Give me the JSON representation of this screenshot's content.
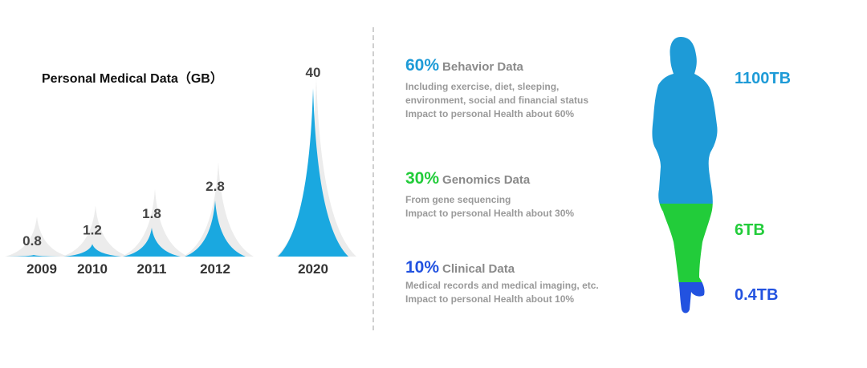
{
  "chart_data": {
    "type": "bar",
    "title": "Personal Medical Data（GB）",
    "categories": [
      "2009",
      "2010",
      "2011",
      "2012",
      "2020"
    ],
    "values": [
      0.8,
      1.2,
      1.8,
      2.8,
      40
    ],
    "value_labels": [
      "0.8",
      "1.2",
      "1.8",
      "2.8",
      "40"
    ]
  },
  "categories_panel": [
    {
      "pct": "60%",
      "name": "Behavior Data",
      "lines": [
        "Including exercise, diet, sleeping,",
        "environment, social and financial status",
        "Impact to personal Health about 60%"
      ],
      "size": "1100TB"
    },
    {
      "pct": "30%",
      "name": "Genomics Data",
      "lines": [
        "From gene sequencing",
        "Impact to personal Health about 30%"
      ],
      "size": "6TB"
    },
    {
      "pct": "10%",
      "name": "Clinical Data",
      "lines": [
        "Medical records and medical imaging, etc.",
        "Impact to personal Health about 10%"
      ],
      "size": "0.4TB"
    }
  ],
  "colors": {
    "spike": "#1aa8e0",
    "spike_shadow": "#ececec",
    "behavior": "#1e9bd7",
    "genomics": "#22cc3a",
    "clinical": "#2252e0"
  }
}
